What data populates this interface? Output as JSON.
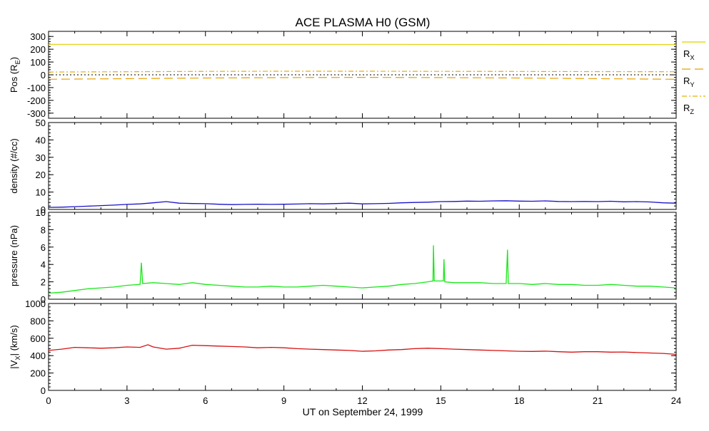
{
  "title": "ACE PLASMA H0 (GSM)",
  "xlabel": "UT on September 24, 1999",
  "x_ticks": [
    "0",
    "3",
    "6",
    "9",
    "12",
    "15",
    "18",
    "21",
    "24"
  ],
  "colors": {
    "rx": "#e0d000",
    "ry": "#e8a000",
    "rz": "#e8b000",
    "density": "#1a12c8",
    "pressure": "#18e818",
    "vx": "#d81010"
  },
  "chart_data": [
    {
      "type": "line",
      "ylabel_main": "Pos (R",
      "ylabel_sub": "E",
      "ylabel_end": ")",
      "ylim": [
        -340,
        340
      ],
      "xlim": [
        0,
        24
      ],
      "yticks": [
        "300",
        "200",
        "100",
        "0",
        "-100",
        "-200",
        "-300"
      ],
      "reference_line": 0,
      "series": [
        {
          "name_main": "R",
          "name_sub": "X",
          "x": [
            0,
            6,
            12,
            18,
            24
          ],
          "values": [
            238,
            238,
            238,
            237,
            236
          ]
        },
        {
          "name_main": "R",
          "name_sub": "Y",
          "x": [
            0,
            3,
            6,
            9,
            12,
            15,
            18,
            21,
            24
          ],
          "values": [
            -35,
            -30,
            -25,
            -22,
            -20,
            -22,
            -25,
            -30,
            -35
          ]
        },
        {
          "name_main": "R",
          "name_sub": "Z",
          "x": [
            0,
            3,
            6,
            9,
            12,
            15,
            18,
            21,
            24
          ],
          "values": [
            22,
            24,
            27,
            28,
            28,
            27,
            26,
            25,
            24
          ]
        }
      ]
    },
    {
      "type": "line",
      "ylabel": "density (#/cc)",
      "ylim": [
        0,
        50
      ],
      "xlim": [
        0,
        24
      ],
      "yticks": [
        "50",
        "40",
        "30",
        "20",
        "10",
        "0"
      ],
      "x": [
        0,
        0.5,
        1,
        1.5,
        2,
        2.5,
        3,
        3.5,
        4,
        4.5,
        5,
        5.5,
        6,
        6.5,
        7,
        7.5,
        8,
        8.5,
        9,
        9.5,
        10,
        10.5,
        11,
        11.5,
        12,
        12.5,
        13,
        13.5,
        14,
        14.5,
        15,
        15.5,
        16,
        16.5,
        17,
        17.5,
        18,
        18.5,
        19,
        19.5,
        20,
        20.5,
        21,
        21.5,
        22,
        22.5,
        23,
        23.5,
        24
      ],
      "values": [
        1.2,
        1.3,
        1.6,
        1.9,
        2.2,
        2.5,
        2.9,
        3.2,
        3.8,
        4.5,
        3.6,
        3.4,
        3.3,
        3.0,
        2.8,
        2.9,
        3.0,
        2.9,
        3.0,
        3.1,
        3.3,
        3.2,
        3.4,
        3.6,
        3.2,
        3.3,
        3.5,
        3.8,
        4.0,
        4.2,
        4.5,
        4.6,
        4.8,
        4.7,
        4.9,
        5.0,
        4.8,
        4.7,
        4.9,
        4.6,
        4.5,
        4.6,
        4.5,
        4.7,
        4.4,
        4.5,
        4.3,
        3.8,
        3.6
      ]
    },
    {
      "type": "line",
      "ylabel": "pressure (nPa)",
      "ylim": [
        0,
        10
      ],
      "xlim": [
        0,
        24
      ],
      "yticks": [
        "10",
        "8",
        "6",
        "4",
        "2",
        "0"
      ],
      "x": [
        0,
        0.5,
        1,
        1.5,
        2,
        2.5,
        3,
        3.5,
        3.55,
        3.6,
        4,
        4.5,
        5,
        5.5,
        6,
        6.5,
        7,
        7.5,
        8,
        8.5,
        9,
        9.5,
        10,
        10.5,
        11,
        11.5,
        12,
        12.5,
        13,
        13.5,
        14,
        14.5,
        14.7,
        14.72,
        14.75,
        15,
        15.1,
        15.12,
        15.15,
        15.5,
        16,
        16.5,
        17,
        17.5,
        17.55,
        17.58,
        18,
        18.5,
        19,
        19.5,
        20,
        20.5,
        21,
        21.5,
        22,
        22.5,
        23,
        23.5,
        24
      ],
      "values": [
        0.7,
        0.8,
        1.0,
        1.2,
        1.3,
        1.4,
        1.6,
        1.7,
        4.2,
        1.8,
        1.9,
        1.8,
        1.7,
        1.9,
        1.7,
        1.6,
        1.5,
        1.4,
        1.4,
        1.5,
        1.4,
        1.4,
        1.5,
        1.6,
        1.5,
        1.4,
        1.3,
        1.4,
        1.5,
        1.7,
        1.8,
        2.0,
        2.1,
        6.2,
        2.1,
        2.1,
        2.1,
        4.6,
        2.0,
        1.9,
        1.9,
        1.9,
        1.8,
        1.8,
        5.7,
        1.8,
        1.8,
        1.7,
        1.8,
        1.7,
        1.7,
        1.6,
        1.6,
        1.7,
        1.6,
        1.5,
        1.5,
        1.4,
        1.3
      ]
    },
    {
      "type": "line",
      "ylabel_main": "|V",
      "ylabel_sub": "X",
      "ylabel_end": "| (km/s)",
      "ylim": [
        0,
        1000
      ],
      "xlim": [
        0,
        24
      ],
      "yticks": [
        "1000",
        "800",
        "600",
        "400",
        "200",
        "0"
      ],
      "x": [
        0,
        0.5,
        1,
        1.5,
        2,
        2.5,
        3,
        3.5,
        3.8,
        4,
        4.5,
        5,
        5.5,
        6,
        6.5,
        7,
        7.5,
        8,
        8.5,
        9,
        9.5,
        10,
        10.5,
        11,
        11.5,
        12,
        12.5,
        13,
        13.5,
        14,
        14.5,
        15,
        15.5,
        16,
        16.5,
        17,
        17.5,
        18,
        18.5,
        19,
        19.5,
        20,
        20.5,
        21,
        21.5,
        22,
        22.5,
        23,
        23.5,
        24
      ],
      "values": [
        460,
        475,
        495,
        490,
        485,
        490,
        500,
        495,
        525,
        500,
        475,
        485,
        520,
        515,
        510,
        505,
        500,
        490,
        495,
        490,
        480,
        475,
        470,
        465,
        460,
        450,
        455,
        465,
        470,
        480,
        485,
        480,
        475,
        470,
        465,
        460,
        455,
        450,
        448,
        452,
        445,
        440,
        445,
        445,
        440,
        442,
        435,
        430,
        425,
        415
      ]
    }
  ]
}
